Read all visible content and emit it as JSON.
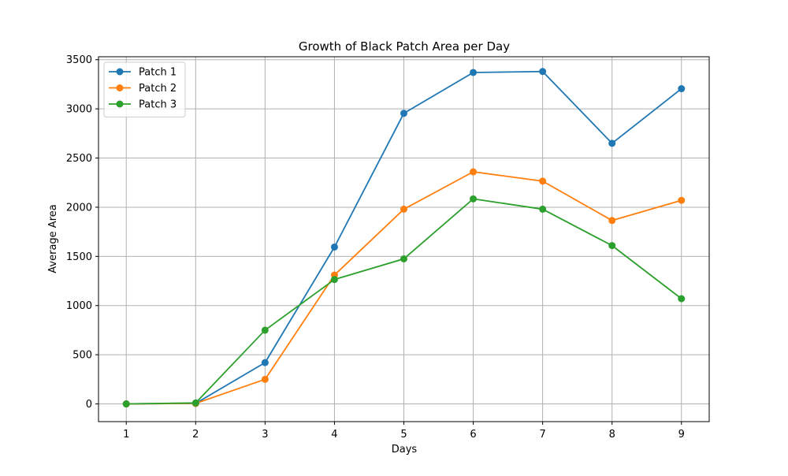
{
  "chart_data": {
    "type": "line",
    "title": "Growth of Black Patch Area per Day",
    "xlabel": "Days",
    "ylabel": "Average Area",
    "x": [
      1,
      2,
      3,
      4,
      5,
      6,
      7,
      8,
      9
    ],
    "xlim": [
      0.6,
      9.4
    ],
    "ylim": [
      -180,
      3530
    ],
    "xticks": [
      1,
      2,
      3,
      4,
      5,
      6,
      7,
      8,
      9
    ],
    "yticks": [
      0,
      500,
      1000,
      1500,
      2000,
      2500,
      3000,
      3500
    ],
    "grid": true,
    "legend_position": "upper-left",
    "series": [
      {
        "name": "Patch 1",
        "color": "#1f77b4",
        "values": [
          0,
          5,
          420,
          1595,
          2955,
          3370,
          3380,
          2650,
          3205
        ]
      },
      {
        "name": "Patch 2",
        "color": "#ff7f0e",
        "values": [
          0,
          5,
          250,
          1310,
          1980,
          2360,
          2265,
          1865,
          2070
        ]
      },
      {
        "name": "Patch 3",
        "color": "#2ca02c",
        "values": [
          0,
          10,
          750,
          1265,
          1475,
          2085,
          1980,
          1610,
          1070
        ]
      }
    ]
  }
}
